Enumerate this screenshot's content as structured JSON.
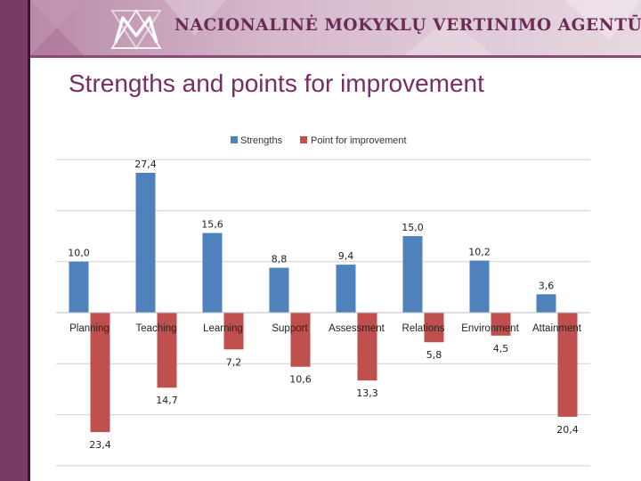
{
  "header": {
    "agency_name": "NACIONALINĖ MOKYKLŲ VERTINIMO AGENTŪRA",
    "logo_icon": "nmva-logo-icon",
    "brand_color": "#7a3a66"
  },
  "slide": {
    "title": "Strengths and points for improvement"
  },
  "chart_data": {
    "type": "bar",
    "categories": [
      "Planning",
      "Teaching",
      "Learning",
      "Support",
      "Assessment",
      "Relations",
      "Environment",
      "Attainment"
    ],
    "series": [
      {
        "name": "Strengths",
        "values": [
          10.0,
          27.4,
          15.6,
          8.8,
          9.4,
          15.0,
          10.2,
          3.6
        ],
        "labels": [
          "10,0",
          "27,4",
          "15,6",
          "8,8",
          "9,4",
          "15,0",
          "10,2",
          "3,6"
        ],
        "color": "#4f81bd"
      },
      {
        "name": "Point for improvement",
        "values": [
          -23.4,
          -14.7,
          -7.2,
          -10.6,
          -13.3,
          -5.8,
          -4.5,
          -20.4
        ],
        "labels": [
          "23,4",
          "14,7",
          "7,2",
          "10,6",
          "13,3",
          "5,8",
          "4,5",
          "20,4"
        ],
        "color": "#c0504d"
      }
    ],
    "ylim": [
      -30,
      30
    ],
    "grid": true,
    "legend_position": "top"
  }
}
